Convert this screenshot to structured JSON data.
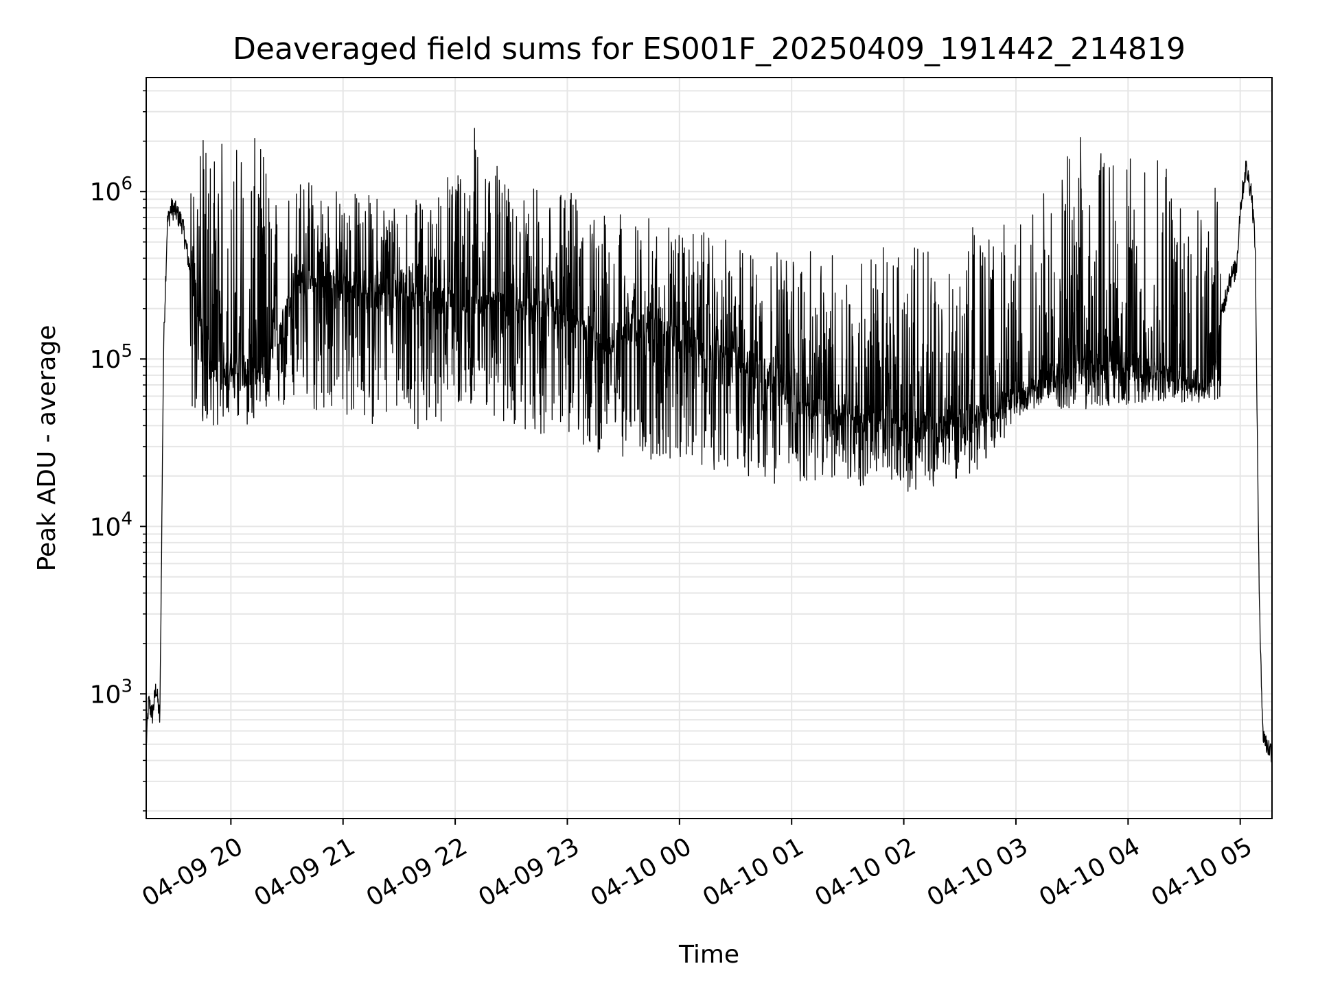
{
  "chart_data": {
    "type": "line",
    "title": "Deaveraged field sums for ES001F_20250409_191442_214819",
    "xlabel": "Time",
    "ylabel": "Peak ADU - average",
    "yscale": "log",
    "ylim": [
      180,
      4800000
    ],
    "xlim": [
      "2025-04-09 19:14:42",
      "2025-04-10 05:17:00"
    ],
    "x_ticks": [
      {
        "value": "2025-04-09 20:00",
        "label": "04-09 20"
      },
      {
        "value": "2025-04-09 21:00",
        "label": "04-09 21"
      },
      {
        "value": "2025-04-09 22:00",
        "label": "04-09 22"
      },
      {
        "value": "2025-04-09 23:00",
        "label": "04-09 23"
      },
      {
        "value": "2025-04-10 00:00",
        "label": "04-10 00"
      },
      {
        "value": "2025-04-10 01:00",
        "label": "04-10 01"
      },
      {
        "value": "2025-04-10 02:00",
        "label": "04-10 02"
      },
      {
        "value": "2025-04-10 03:00",
        "label": "04-10 03"
      },
      {
        "value": "2025-04-10 04:00",
        "label": "04-10 04"
      },
      {
        "value": "2025-04-10 05:00",
        "label": "04-10 05"
      }
    ],
    "y_ticks": [
      {
        "value": 1000,
        "base": "10",
        "exp": "3"
      },
      {
        "value": 10000,
        "base": "10",
        "exp": "4"
      },
      {
        "value": 100000,
        "base": "10",
        "exp": "5"
      },
      {
        "value": 1000000,
        "base": "10",
        "exp": "6"
      }
    ],
    "grid": true,
    "line_color": "#000000",
    "grid_color": "#e6e6e6",
    "series": [
      {
        "x": [
          "2025-04-09 19:14:42",
          "2025-04-09 19:16",
          "2025-04-09 19:18",
          "2025-04-09 19:20",
          "2025-04-09 19:22",
          "2025-04-09 19:24",
          "2025-04-09 19:26",
          "2025-04-09 19:28",
          "2025-04-09 19:30",
          "2025-04-09 19:34",
          "2025-04-09 19:38",
          "2025-04-09 19:42",
          "2025-04-09 19:46",
          "2025-04-09 19:50",
          "2025-04-09 19:55",
          "2025-04-09 20:05",
          "2025-04-09 20:20",
          "2025-04-09 20:35",
          "2025-04-09 20:50",
          "2025-04-09 21:05",
          "2025-04-09 21:20",
          "2025-04-09 21:35",
          "2025-04-09 21:50",
          "2025-04-09 22:05",
          "2025-04-09 22:20",
          "2025-04-09 22:35",
          "2025-04-09 22:50",
          "2025-04-09 23:05",
          "2025-04-09 23:20",
          "2025-04-09 23:35",
          "2025-04-09 23:50",
          "2025-04-10 00:05",
          "2025-04-10 00:20",
          "2025-04-10 00:35",
          "2025-04-10 00:50",
          "2025-04-10 01:05",
          "2025-04-10 01:20",
          "2025-04-10 01:35",
          "2025-04-10 01:50",
          "2025-04-10 02:05",
          "2025-04-10 02:20",
          "2025-04-10 02:35",
          "2025-04-10 02:50",
          "2025-04-10 03:05",
          "2025-04-10 03:20",
          "2025-04-10 03:35",
          "2025-04-10 03:50",
          "2025-04-10 04:05",
          "2025-04-10 04:20",
          "2025-04-10 04:35",
          "2025-04-10 04:42",
          "2025-04-10 04:46",
          "2025-04-10 04:50",
          "2025-04-10 04:54",
          "2025-04-10 04:58",
          "2025-04-10 05:00",
          "2025-04-10 05:03",
          "2025-04-10 05:06",
          "2025-04-10 05:08",
          "2025-04-10 05:10",
          "2025-04-10 05:12",
          "2025-04-10 05:14",
          "2025-04-10 05:17"
        ],
        "y": [
          500,
          900,
          750,
          1100,
          700,
          120000,
          650000,
          800000,
          780000,
          650000,
          350000,
          220000,
          110000,
          90000,
          80000,
          85000,
          90000,
          300000,
          280000,
          260000,
          240000,
          250000,
          230000,
          220000,
          210000,
          200000,
          180000,
          170000,
          110000,
          160000,
          150000,
          130000,
          110000,
          95000,
          80000,
          55000,
          50000,
          45000,
          42000,
          40000,
          38000,
          45000,
          48000,
          65000,
          80000,
          90000,
          95000,
          90000,
          80000,
          75000,
          70000,
          80000,
          180000,
          300000,
          350000,
          800000,
          1400000,
          1000000,
          500000,
          5000,
          600,
          500,
          450
        ]
      },
      {
        "name": "",
        "x": [
          "2025-04-09 20:16",
          "2025-04-09 20:29",
          "2025-04-09 20:45",
          "2025-04-09 21:09",
          "2025-04-09 21:27",
          "2025-04-09 21:48",
          "2025-04-09 22:09",
          "2025-04-09 22:31",
          "2025-04-09 22:55",
          "2025-04-09 23:12",
          "2025-04-09 23:58",
          "2025-04-10 00:42",
          "2025-04-10 01:30",
          "2025-04-10 02:26",
          "2025-04-10 03:05",
          "2025-04-10 03:35",
          "2025-04-10 03:55",
          "2025-04-10 04:13",
          "2025-04-10 04:35",
          "2025-04-10 04:50"
        ],
        "y": [
          2100000,
          1150000,
          1250000,
          1000000,
          950000,
          880000,
          3000000,
          900000,
          1300000,
          800000,
          650000,
          450000,
          430000,
          600000,
          700000,
          2300000,
          1600000,
          1600000,
          1500000,
          1100000
        ]
      },
      {
        "name": "",
        "x": [
          "2025-04-09 20:10",
          "2025-04-09 20:35",
          "2025-04-09 21:05",
          "2025-04-09 21:40",
          "2025-04-09 22:05",
          "2025-04-09 22:45",
          "2025-04-09 23:10",
          "2025-04-09 23:40",
          "2025-04-10 00:15",
          "2025-04-10 00:45",
          "2025-04-10 01:10",
          "2025-04-10 01:45",
          "2025-04-10 02:05",
          "2025-04-10 02:40",
          "2025-04-10 03:05",
          "2025-04-10 03:40",
          "2025-04-10 04:10",
          "2025-04-10 04:40"
        ],
        "y": [
          40000,
          50000,
          42000,
          38000,
          45000,
          35000,
          28000,
          25000,
          22000,
          18000,
          18000,
          17000,
          16000,
          21000,
          50000,
          50000,
          55000,
          55000
        ]
      }
    ]
  }
}
